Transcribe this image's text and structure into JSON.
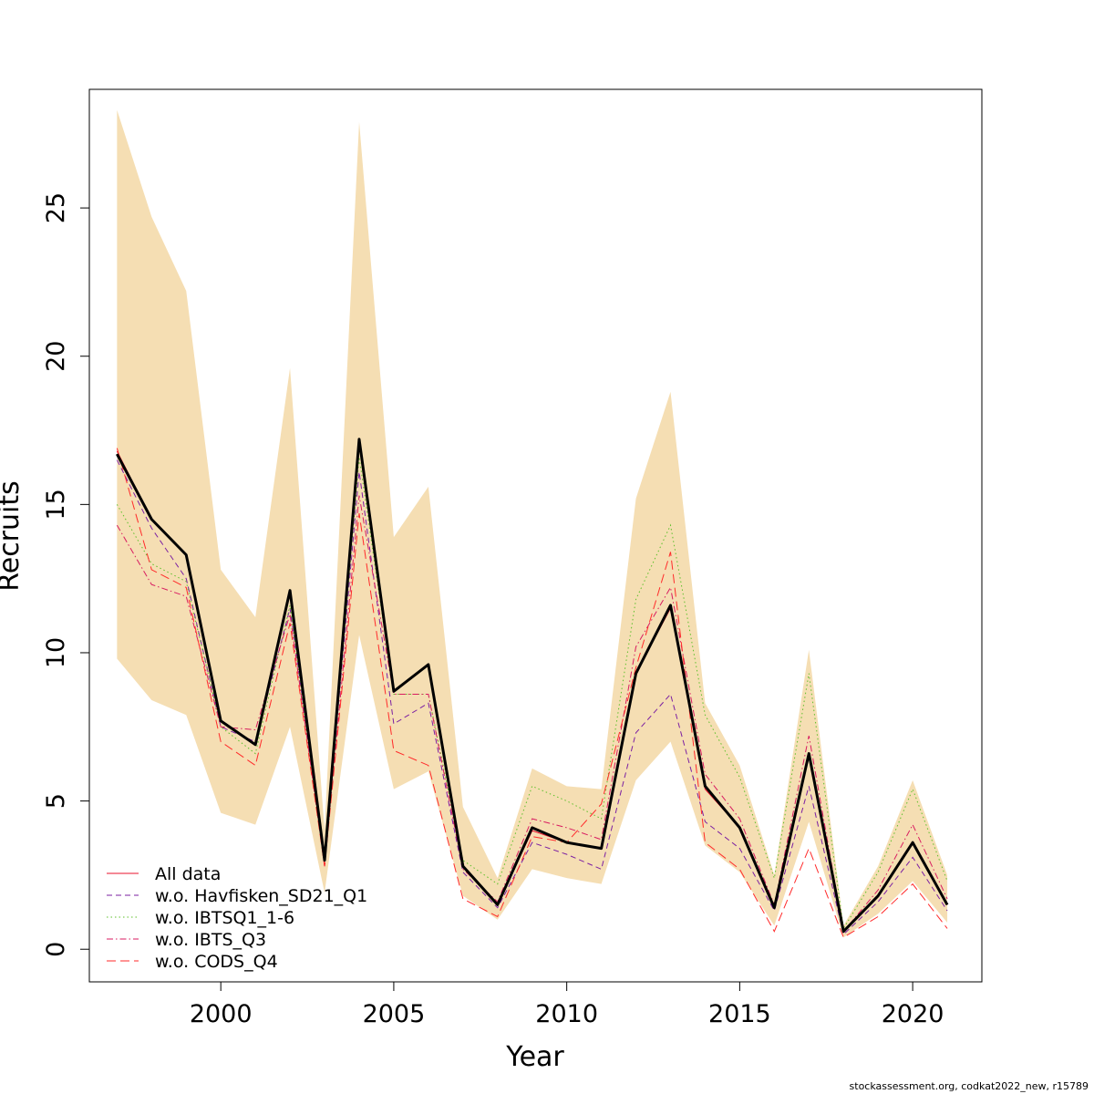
{
  "chart_data": {
    "type": "line",
    "xlabel": "Year",
    "ylabel": "Recruits",
    "xlim": [
      1996.2,
      2022.0
    ],
    "ylim": [
      -1.1,
      29.0
    ],
    "x_ticks": [
      2000,
      2005,
      2010,
      2015,
      2020
    ],
    "y_ticks": [
      0,
      5,
      10,
      15,
      20,
      25
    ],
    "x": [
      1997,
      1998,
      1999,
      2000,
      2001,
      2002,
      2003,
      2004,
      2005,
      2006,
      2007,
      2008,
      2009,
      2010,
      2011,
      2012,
      2013,
      2014,
      2015,
      2016,
      2017,
      2018,
      2019,
      2020,
      2021
    ],
    "confidence_band": {
      "color": "#f5deb3",
      "lower": [
        9.8,
        8.4,
        7.9,
        4.6,
        4.2,
        7.5,
        1.9,
        10.6,
        5.4,
        6.0,
        1.8,
        1.0,
        2.7,
        2.4,
        2.2,
        5.7,
        7.0,
        3.5,
        2.6,
        0.8,
        4.3,
        0.4,
        1.2,
        2.3,
        0.9
      ],
      "upper": [
        28.3,
        24.7,
        22.2,
        12.8,
        11.2,
        19.6,
        4.0,
        27.9,
        13.9,
        15.6,
        4.8,
        2.4,
        6.1,
        5.5,
        5.4,
        15.2,
        18.8,
        8.3,
        6.2,
        2.5,
        10.1,
        0.8,
        2.8,
        5.7,
        2.5
      ]
    },
    "main_line": {
      "name": "All data",
      "color": "#000000",
      "values": [
        16.7,
        14.5,
        13.3,
        7.7,
        6.9,
        12.1,
        3.0,
        17.2,
        8.7,
        9.6,
        2.8,
        1.5,
        4.1,
        3.6,
        3.4,
        9.3,
        11.6,
        5.5,
        4.1,
        1.4,
        6.6,
        0.6,
        1.8,
        3.6,
        1.5
      ]
    },
    "series": [
      {
        "name": "All data",
        "color": "#e8112d",
        "dash": "solid",
        "values": [
          16.8,
          14.5,
          13.3,
          7.7,
          6.9,
          12.1,
          3.0,
          17.2,
          8.7,
          9.6,
          2.8,
          1.5,
          4.0,
          3.6,
          3.4,
          9.3,
          11.5,
          5.4,
          4.1,
          1.4,
          6.6,
          0.6,
          1.8,
          3.6,
          1.5
        ]
      },
      {
        "name": "w.o. Havfisken_SD21_Q1",
        "color": "#7b1fa2",
        "dash": "6,4",
        "values": [
          16.5,
          14.2,
          12.5,
          7.5,
          7.0,
          11.5,
          3.0,
          16.1,
          7.6,
          8.3,
          2.6,
          1.4,
          3.6,
          3.2,
          2.7,
          7.3,
          8.6,
          4.3,
          3.4,
          1.3,
          5.5,
          0.5,
          1.6,
          3.1,
          1.3
        ]
      },
      {
        "name": "w.o. IBTSQ1_1-6",
        "color": "#5cbf2a",
        "dash": "1.5,3",
        "values": [
          15.0,
          13.0,
          12.4,
          7.5,
          6.6,
          11.6,
          2.8,
          16.6,
          8.6,
          8.6,
          3.0,
          2.2,
          5.5,
          5.0,
          4.4,
          11.8,
          14.3,
          7.9,
          5.8,
          2.4,
          9.3,
          0.7,
          2.6,
          5.4,
          2.3
        ]
      },
      {
        "name": "w.o. IBTS_Q3",
        "color": "#d81b60",
        "dash": "7,3,1.5,3",
        "values": [
          14.3,
          12.3,
          11.9,
          7.5,
          7.4,
          11.3,
          2.8,
          15.3,
          8.6,
          8.6,
          2.7,
          1.6,
          4.4,
          4.1,
          3.7,
          10.2,
          12.2,
          5.9,
          4.4,
          1.5,
          7.2,
          0.6,
          2.0,
          4.2,
          1.7
        ]
      },
      {
        "name": "w.o. CODS_Q4",
        "color": "#ff2a2a",
        "dash": "10,5",
        "values": [
          16.9,
          12.8,
          12.2,
          7.0,
          6.2,
          11.0,
          2.8,
          14.7,
          6.7,
          6.2,
          1.7,
          1.1,
          3.8,
          3.6,
          4.9,
          9.5,
          13.4,
          3.6,
          2.7,
          0.6,
          3.4,
          0.4,
          1.1,
          2.2,
          0.7
        ]
      }
    ],
    "legend_position": "bottom-left",
    "grid": false
  },
  "footer_text": "stockassessment.org, codkat2022_new, r15789"
}
